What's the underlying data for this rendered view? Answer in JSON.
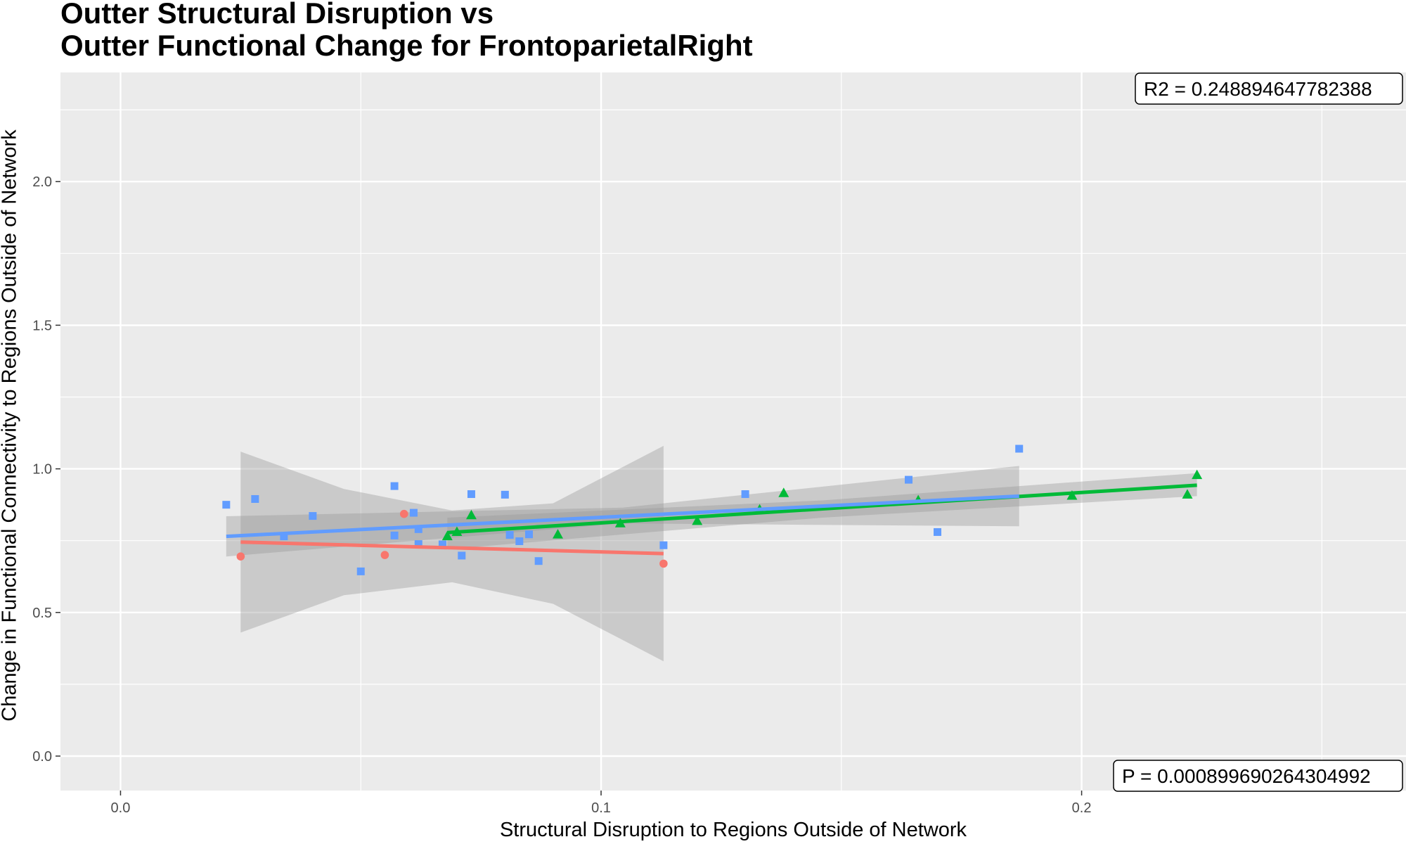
{
  "title_line1": "Outter Structural Disruption vs",
  "title_line2": "Outter Functional Change for FrontoparietalRight",
  "xlabel": "Structural Disruption to Regions Outside of Network",
  "ylabel": "Change in Functional Connectivity to Regions Outside of Network",
  "annotations": {
    "r2": "R2 =  0.248894647782388",
    "p": "P =  0.000899690264304992"
  },
  "colors": {
    "panel": "#ebebeb",
    "grid": "#ffffff",
    "ribbon": "#999999",
    "red": "#f8766d",
    "green": "#00ba38",
    "blue": "#619cff"
  },
  "chart_data": {
    "type": "scatter",
    "xlim": [
      -0.0125,
      0.2675
    ],
    "ylim": [
      -0.12,
      2.38
    ],
    "x_ticks": [
      0.0,
      0.1,
      0.2
    ],
    "x_tick_labels": [
      "0.0",
      "0.1",
      "0.2"
    ],
    "y_ticks": [
      0.0,
      0.5,
      1.0,
      1.5,
      2.0
    ],
    "y_tick_labels": [
      "0.0",
      "0.5",
      "1.0",
      "1.5",
      "2.0"
    ],
    "grid": true,
    "legend": "none",
    "series": [
      {
        "color": "red",
        "shape": "circle",
        "points": [
          [
            0.025,
            0.695
          ],
          [
            0.055,
            0.7
          ],
          [
            0.059,
            0.843
          ],
          [
            0.113,
            0.67
          ]
        ],
        "fit": {
          "x": [
            0.025,
            0.113
          ],
          "y": [
            0.745,
            0.705
          ]
        },
        "ribbon": {
          "x": [
            0.025,
            0.0465,
            0.069,
            0.09,
            0.113
          ],
          "lower": [
            0.43,
            0.56,
            0.605,
            0.53,
            0.33
          ],
          "upper": [
            1.06,
            0.93,
            0.855,
            0.88,
            1.08
          ]
        }
      },
      {
        "color": "green",
        "shape": "triangle",
        "points": [
          [
            0.068,
            0.765
          ],
          [
            0.07,
            0.78
          ],
          [
            0.073,
            0.838
          ],
          [
            0.091,
            0.771
          ],
          [
            0.104,
            0.81
          ],
          [
            0.12,
            0.818
          ],
          [
            0.138,
            0.915
          ],
          [
            0.198,
            0.906
          ],
          [
            0.222,
            0.91
          ],
          [
            0.224,
            0.978
          ],
          [
            0.166,
            0.89
          ],
          [
            0.133,
            0.858
          ]
        ],
        "fit": {
          "x": [
            0.068,
            0.224
          ],
          "y": [
            0.778,
            0.943
          ]
        },
        "ribbon": {
          "x": [
            0.068,
            0.146,
            0.224
          ],
          "lower": [
            0.72,
            0.83,
            0.905
          ],
          "upper": [
            0.83,
            0.89,
            0.985
          ]
        }
      },
      {
        "color": "blue",
        "shape": "square",
        "points": [
          [
            0.022,
            0.875
          ],
          [
            0.028,
            0.895
          ],
          [
            0.034,
            0.765
          ],
          [
            0.04,
            0.836
          ],
          [
            0.05,
            0.643
          ],
          [
            0.057,
            0.94
          ],
          [
            0.057,
            0.768
          ],
          [
            0.061,
            0.847
          ],
          [
            0.062,
            0.79
          ],
          [
            0.062,
            0.738
          ],
          [
            0.067,
            0.737
          ],
          [
            0.071,
            0.698
          ],
          [
            0.073,
            0.912
          ],
          [
            0.08,
            0.91
          ],
          [
            0.081,
            0.77
          ],
          [
            0.083,
            0.748
          ],
          [
            0.085,
            0.772
          ],
          [
            0.087,
            0.679
          ],
          [
            0.113,
            0.734
          ],
          [
            0.13,
            0.912
          ],
          [
            0.164,
            0.962
          ],
          [
            0.17,
            0.78
          ],
          [
            0.187,
            1.07
          ]
        ],
        "fit": {
          "x": [
            0.022,
            0.187
          ],
          "y": [
            0.765,
            0.905
          ]
        },
        "ribbon": {
          "x": [
            0.022,
            0.1045,
            0.187
          ],
          "lower": [
            0.695,
            0.81,
            0.8
          ],
          "upper": [
            0.835,
            0.865,
            1.01
          ]
        }
      }
    ]
  }
}
